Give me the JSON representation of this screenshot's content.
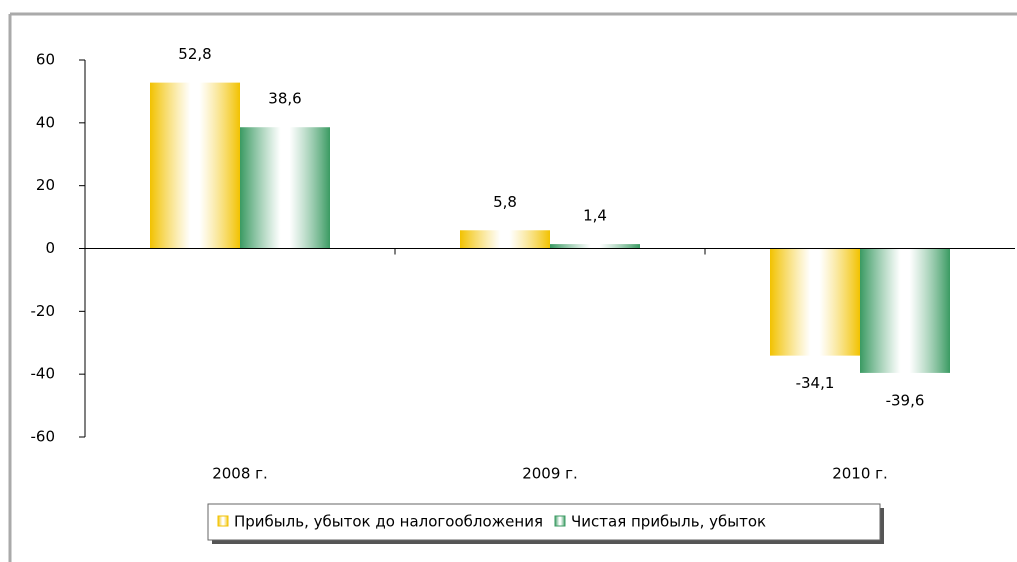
{
  "chart_data": {
    "type": "bar",
    "categories": [
      "2008 г.",
      "2009 г.",
      "2010 г."
    ],
    "series": [
      {
        "name": "Прибыль, убыток до налогообложения",
        "color": "#f2c200",
        "values": [
          52.8,
          5.8,
          -34.1
        ],
        "value_labels": [
          "52,8",
          "5,8",
          "-34,1"
        ]
      },
      {
        "name": "Чистая прибыль, убыток",
        "color": "#3a9a62",
        "values": [
          38.6,
          1.4,
          -39.6
        ],
        "value_labels": [
          "38,6",
          "1,4",
          "-39,6"
        ]
      }
    ],
    "ylim": [
      -60,
      60
    ],
    "yticks": [
      -60,
      -40,
      -20,
      0,
      20,
      40,
      60
    ],
    "legend": "bottom"
  }
}
